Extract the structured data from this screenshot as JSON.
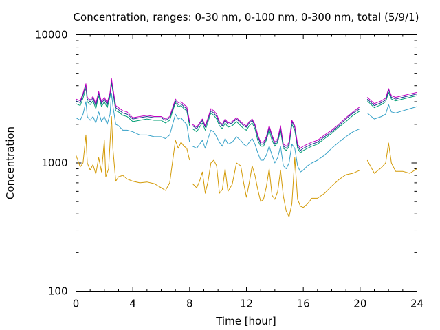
{
  "chart_data": {
    "type": "line",
    "title": "Concentration, ranges: 0-30 nm, 0-100 nm, 0-300 nm, total (5/9/1)",
    "xlabel": "Time [hour]",
    "ylabel": "Concentration",
    "xlim": [
      0,
      24
    ],
    "ylim": [
      100,
      10000
    ],
    "yscale": "log",
    "grid": false,
    "legend": "none",
    "x_ticks": [
      0,
      4,
      8,
      12,
      16,
      20,
      24
    ],
    "x_tick_labels": [
      "0",
      "4",
      "8",
      "12",
      "16",
      "20",
      "24"
    ],
    "y_ticks": [
      100,
      1000,
      10000
    ],
    "y_tick_labels": [
      "100",
      "1000",
      "10000"
    ],
    "series": [
      {
        "color": "#d39a06",
        "x": [
          0,
          0.3,
          0.5,
          0.7,
          0.8,
          1.0,
          1.2,
          1.4,
          1.6,
          1.8,
          2.0,
          2.1,
          2.3,
          2.5,
          2.6,
          2.8,
          3.0,
          3.3,
          3.6,
          4.0,
          4.5,
          5.0,
          5.5,
          6.0,
          6.3,
          6.6,
          7.0,
          7.2,
          7.4,
          7.6,
          7.8,
          8.0,
          null,
          8.2,
          8.5,
          8.7,
          8.9,
          9.1,
          9.3,
          9.5,
          9.7,
          9.9,
          10.1,
          10.3,
          10.5,
          10.7,
          11.0,
          11.3,
          11.6,
          11.8,
          12.0,
          12.2,
          12.4,
          12.6,
          12.8,
          13.0,
          13.2,
          13.4,
          13.6,
          13.8,
          14.0,
          14.2,
          14.4,
          14.6,
          14.8,
          15.0,
          15.2,
          15.4,
          15.6,
          15.8,
          16.0,
          16.3,
          16.6,
          17.0,
          17.5,
          18.0,
          18.5,
          19.0,
          19.5,
          20.0,
          null,
          20.5,
          21.0,
          21.5,
          21.8,
          22.0,
          22.2,
          22.5,
          23.0,
          23.5,
          24.0
        ],
        "values": [
          1150,
          930,
          1000,
          1650,
          1000,
          880,
          970,
          820,
          1100,
          850,
          1500,
          780,
          900,
          2300,
          1300,
          720,
          780,
          800,
          750,
          720,
          700,
          710,
          690,
          640,
          610,
          700,
          1500,
          1300,
          1450,
          1350,
          1300,
          1050,
          null,
          690,
          640,
          720,
          850,
          580,
          720,
          1000,
          1050,
          950,
          580,
          620,
          900,
          600,
          680,
          1000,
          950,
          700,
          540,
          700,
          950,
          800,
          620,
          500,
          520,
          650,
          900,
          560,
          520,
          600,
          880,
          550,
          420,
          380,
          480,
          1100,
          520,
          460,
          450,
          480,
          530,
          530,
          580,
          660,
          740,
          810,
          830,
          880,
          null,
          1050,
          830,
          920,
          1000,
          1430,
          1000,
          860,
          860,
          830,
          900
        ]
      },
      {
        "color": "#36a1c8",
        "x": [
          0,
          0.3,
          0.5,
          0.7,
          0.8,
          1.0,
          1.2,
          1.4,
          1.6,
          1.8,
          2.0,
          2.2,
          2.4,
          2.5,
          2.6,
          2.8,
          3.0,
          3.3,
          3.6,
          4.0,
          4.5,
          5.0,
          5.5,
          6.0,
          6.3,
          6.6,
          7.0,
          7.2,
          7.4,
          7.6,
          7.8,
          8.0,
          null,
          8.2,
          8.5,
          8.7,
          8.9,
          9.1,
          9.3,
          9.5,
          9.7,
          9.9,
          10.1,
          10.3,
          10.5,
          10.7,
          11.0,
          11.3,
          11.6,
          11.8,
          12.0,
          12.2,
          12.4,
          12.6,
          12.8,
          13.0,
          13.2,
          13.4,
          13.6,
          13.8,
          14.0,
          14.2,
          14.4,
          14.6,
          14.8,
          15.0,
          15.2,
          15.4,
          15.6,
          15.8,
          16.0,
          16.3,
          16.6,
          17.0,
          17.5,
          18.0,
          18.5,
          19.0,
          19.5,
          20.0,
          null,
          20.5,
          21.0,
          21.5,
          21.8,
          22.0,
          22.2,
          22.5,
          23.0,
          23.5,
          24.0
        ],
        "values": [
          2250,
          2150,
          2400,
          3000,
          2300,
          2150,
          2300,
          2050,
          2500,
          2100,
          2300,
          2000,
          2400,
          3500,
          2800,
          2000,
          1950,
          1800,
          1800,
          1750,
          1650,
          1650,
          1600,
          1600,
          1550,
          1650,
          2400,
          2200,
          2250,
          2100,
          2000,
          1450,
          null,
          1350,
          1300,
          1400,
          1500,
          1300,
          1550,
          1800,
          1750,
          1600,
          1450,
          1350,
          1550,
          1400,
          1450,
          1600,
          1500,
          1400,
          1350,
          1450,
          1550,
          1400,
          1200,
          1050,
          1050,
          1150,
          1350,
          1150,
          1000,
          1100,
          1350,
          950,
          900,
          1000,
          1400,
          1300,
          950,
          850,
          880,
          950,
          1000,
          1050,
          1150,
          1300,
          1450,
          1600,
          1750,
          1850,
          null,
          2450,
          2200,
          2300,
          2400,
          2850,
          2500,
          2450,
          2550,
          2650,
          2750
        ]
      },
      {
        "color": "#009e73",
        "x": [
          0,
          0.3,
          0.5,
          0.7,
          0.8,
          1.0,
          1.2,
          1.4,
          1.6,
          1.8,
          2.0,
          2.2,
          2.4,
          2.5,
          2.6,
          2.8,
          3.0,
          3.3,
          3.6,
          4.0,
          4.5,
          5.0,
          5.5,
          6.0,
          6.3,
          6.6,
          7.0,
          7.2,
          7.4,
          7.6,
          7.8,
          8.0,
          null,
          8.2,
          8.5,
          8.7,
          8.9,
          9.1,
          9.3,
          9.5,
          9.7,
          9.9,
          10.1,
          10.3,
          10.5,
          10.7,
          11.0,
          11.3,
          11.6,
          11.8,
          12.0,
          12.2,
          12.4,
          12.6,
          12.8,
          13.0,
          13.2,
          13.4,
          13.6,
          13.8,
          14.0,
          14.2,
          14.4,
          14.6,
          14.8,
          15.0,
          15.2,
          15.4,
          15.6,
          15.8,
          16.0,
          16.3,
          16.6,
          17.0,
          17.5,
          18.0,
          18.5,
          19.0,
          19.5,
          20.0,
          null,
          20.5,
          21.0,
          21.5,
          21.8,
          22.0,
          22.2,
          22.5,
          23.0,
          23.5,
          24.0
        ],
        "values": [
          2900,
          2800,
          3200,
          3850,
          3000,
          2850,
          3050,
          2650,
          3350,
          2750,
          3000,
          2700,
          3300,
          4200,
          3600,
          2550,
          2500,
          2350,
          2300,
          2100,
          2150,
          2200,
          2150,
          2150,
          2050,
          2150,
          2950,
          2750,
          2800,
          2650,
          2550,
          1950,
          null,
          1850,
          1750,
          1900,
          2050,
          1800,
          2100,
          2450,
          2350,
          2200,
          1950,
          1850,
          2050,
          1900,
          1950,
          2100,
          1950,
          1850,
          1800,
          1950,
          2050,
          1850,
          1500,
          1350,
          1350,
          1500,
          1800,
          1500,
          1350,
          1450,
          1800,
          1300,
          1250,
          1350,
          2000,
          1800,
          1300,
          1200,
          1250,
          1300,
          1350,
          1400,
          1550,
          1700,
          1900,
          2100,
          2350,
          2550,
          null,
          3050,
          2700,
          2850,
          3000,
          3550,
          3150,
          3050,
          3150,
          3250,
          3350
        ]
      },
      {
        "color": "#1f3a93",
        "x": [
          0,
          0.3,
          0.5,
          0.7,
          0.8,
          1.0,
          1.2,
          1.4,
          1.6,
          1.8,
          2.0,
          2.2,
          2.4,
          2.5,
          2.6,
          2.8,
          3.0,
          3.3,
          3.6,
          4.0,
          4.5,
          5.0,
          5.5,
          6.0,
          6.3,
          6.6,
          7.0,
          7.2,
          7.4,
          7.6,
          7.8,
          8.0,
          null,
          8.2,
          8.5,
          8.7,
          8.9,
          9.1,
          9.3,
          9.5,
          9.7,
          9.9,
          10.1,
          10.3,
          10.5,
          10.7,
          11.0,
          11.3,
          11.6,
          11.8,
          12.0,
          12.2,
          12.4,
          12.6,
          12.8,
          13.0,
          13.2,
          13.4,
          13.6,
          13.8,
          14.0,
          14.2,
          14.4,
          14.6,
          14.8,
          15.0,
          15.2,
          15.4,
          15.6,
          15.8,
          16.0,
          16.3,
          16.6,
          17.0,
          17.5,
          18.0,
          18.5,
          19.0,
          19.5,
          20.0,
          null,
          20.5,
          21.0,
          21.5,
          21.8,
          22.0,
          22.2,
          22.5,
          23.0,
          23.5,
          24.0
        ],
        "values": [
          3050,
          2950,
          3400,
          4050,
          3150,
          3000,
          3200,
          2800,
          3500,
          2900,
          3150,
          2850,
          3450,
          4400,
          3750,
          2700,
          2600,
          2450,
          2400,
          2200,
          2250,
          2300,
          2250,
          2250,
          2150,
          2250,
          3050,
          2850,
          2900,
          2750,
          2650,
          2050,
          null,
          1950,
          1850,
          2000,
          2150,
          1900,
          2200,
          2550,
          2450,
          2300,
          2050,
          1950,
          2150,
          2000,
          2050,
          2200,
          2050,
          1950,
          1900,
          2050,
          2150,
          1950,
          1600,
          1400,
          1400,
          1550,
          1900,
          1600,
          1400,
          1500,
          1900,
          1350,
          1300,
          1400,
          2100,
          1900,
          1350,
          1250,
          1300,
          1350,
          1400,
          1450,
          1600,
          1750,
          1950,
          2200,
          2450,
          2650,
          null,
          3150,
          2800,
          2950,
          3100,
          3700,
          3250,
          3150,
          3250,
          3350,
          3450
        ]
      },
      {
        "color": "#c000c0",
        "x": [
          0,
          0.3,
          0.5,
          0.7,
          0.8,
          1.0,
          1.2,
          1.4,
          1.6,
          1.8,
          2.0,
          2.2,
          2.4,
          2.5,
          2.6,
          2.8,
          3.0,
          3.3,
          3.6,
          4.0,
          4.5,
          5.0,
          5.5,
          6.0,
          6.3,
          6.6,
          7.0,
          7.2,
          7.4,
          7.6,
          7.8,
          8.0,
          null,
          8.2,
          8.5,
          8.7,
          8.9,
          9.1,
          9.3,
          9.5,
          9.7,
          9.9,
          10.1,
          10.3,
          10.5,
          10.7,
          11.0,
          11.3,
          11.6,
          11.8,
          12.0,
          12.2,
          12.4,
          12.6,
          12.8,
          13.0,
          13.2,
          13.4,
          13.6,
          13.8,
          14.0,
          14.2,
          14.4,
          14.6,
          14.8,
          15.0,
          15.2,
          15.4,
          15.6,
          15.8,
          16.0,
          16.3,
          16.6,
          17.0,
          17.5,
          18.0,
          18.5,
          19.0,
          19.5,
          20.0,
          null,
          20.5,
          21.0,
          21.5,
          21.8,
          22.0,
          22.2,
          22.5,
          23.0,
          23.5,
          24.0
        ],
        "values": [
          3150,
          3050,
          3500,
          4150,
          3250,
          3100,
          3300,
          2900,
          3600,
          3000,
          3250,
          2950,
          3550,
          4550,
          3850,
          2800,
          2700,
          2550,
          2500,
          2250,
          2300,
          2350,
          2300,
          2300,
          2200,
          2300,
          3150,
          2950,
          3000,
          2850,
          2750,
          2100,
          null,
          2000,
          1900,
          2050,
          2200,
          1950,
          2250,
          2650,
          2550,
          2400,
          2100,
          2000,
          2200,
          2050,
          2100,
          2250,
          2100,
          2000,
          1950,
          2100,
          2200,
          2000,
          1650,
          1450,
          1450,
          1600,
          1950,
          1650,
          1450,
          1550,
          1950,
          1400,
          1350,
          1450,
          2150,
          1950,
          1400,
          1300,
          1350,
          1400,
          1450,
          1500,
          1650,
          1800,
          2000,
          2250,
          2500,
          2750,
          null,
          3250,
          2900,
          3050,
          3200,
          3800,
          3350,
          3250,
          3350,
          3450,
          3550
        ]
      }
    ]
  }
}
